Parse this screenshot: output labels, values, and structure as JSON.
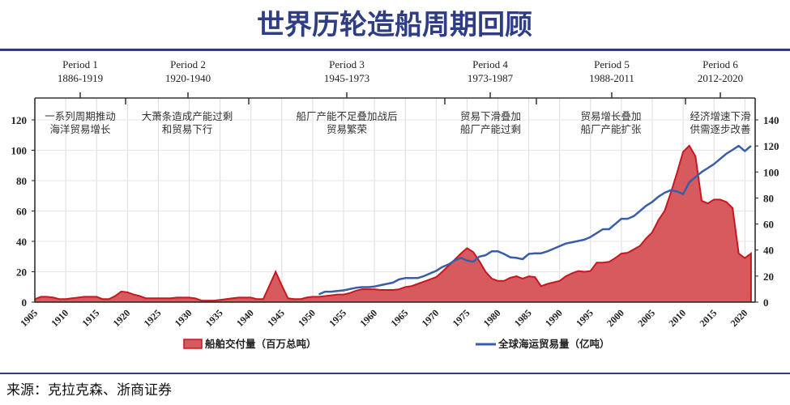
{
  "title": "世界历轮造船周期回顾",
  "source": "来源：克拉克森、浙商证券",
  "colors": {
    "title": "#2e3d84",
    "deliveries": "#c8171e",
    "deliveries_fill": "#d65a5e",
    "trade": "#3a5da8",
    "rule": "#2f3e7a"
  },
  "periods": [
    {
      "name": "Period 1",
      "years": "1886-1919",
      "note": [
        "一系列周期推动",
        "海洋贸易增长"
      ]
    },
    {
      "name": "Period 2",
      "years": "1920-1940",
      "note": [
        "大萧条造成产能过剩",
        "和贸易下行"
      ]
    },
    {
      "name": "Period 3",
      "years": "1945-1973",
      "note": [
        "船厂产能不足叠加战后",
        "贸易繁荣"
      ]
    },
    {
      "name": "Period 4",
      "years": "1973-1987",
      "note": [
        "贸易下滑叠加",
        "船厂产能过剩"
      ]
    },
    {
      "name": "Period 5",
      "years": "1988-2011",
      "note": [
        "贸易增长叠加",
        "船厂产能扩张"
      ]
    },
    {
      "name": "Period 6",
      "years": "2012-2020",
      "note": [
        "经济增速下滑",
        "供需逐步改善"
      ]
    }
  ],
  "chart_data": {
    "type": "area+line",
    "xlabel": "",
    "ylabel": "",
    "y2label": "",
    "xlim": [
      1905,
      2021
    ],
    "x_ticks": [
      "1905",
      "1910",
      "1915",
      "1920",
      "1925",
      "1930",
      "1935",
      "1940",
      "1945",
      "1950",
      "1955",
      "1960",
      "1965",
      "1970",
      "1975",
      "1980",
      "1985",
      "1990",
      "1995",
      "2000",
      "2005",
      "2010",
      "2015",
      "2020"
    ],
    "ylim": [
      0,
      120
    ],
    "y_ticks": [
      "0",
      "20",
      "40",
      "60",
      "80",
      "100",
      "120"
    ],
    "y2lim": [
      0,
      140
    ],
    "y2_ticks": [
      "0",
      "20",
      "40",
      "60",
      "80",
      "100",
      "120",
      "140"
    ],
    "grid": true,
    "legend": "bottom",
    "series": [
      {
        "name": "船舶交付量（百万总吨）",
        "type": "area",
        "axis": "left",
        "start_year": 1905,
        "values": [
          2,
          3.5,
          3.5,
          3,
          2,
          2,
          2.5,
          3,
          3.5,
          3.5,
          3.5,
          2,
          2,
          4,
          7,
          6.5,
          5,
          4,
          2.5,
          2.5,
          2.5,
          2.5,
          2.5,
          3,
          3,
          3,
          2.5,
          1,
          1,
          1,
          1.5,
          2,
          2.5,
          3,
          3,
          3,
          2,
          2,
          11,
          20,
          11,
          2.5,
          2,
          2,
          3,
          3.5,
          3.5,
          4,
          4.5,
          5,
          5,
          6,
          7.5,
          8.5,
          8.5,
          8.5,
          8,
          8,
          8,
          8.5,
          10,
          10.5,
          12,
          13.5,
          15,
          16.5,
          20,
          24,
          28,
          32,
          35.5,
          33,
          27,
          20,
          15.5,
          14,
          14,
          16,
          17,
          15.5,
          17,
          16.5,
          10.5,
          12,
          13,
          14,
          17,
          19,
          20.5,
          20,
          20.5,
          26,
          26,
          26.5,
          29,
          32,
          32.5,
          34.7,
          37,
          42,
          46,
          54,
          60,
          72,
          85,
          99,
          103,
          96,
          66.7,
          65,
          67.5,
          67.5,
          66,
          62,
          32,
          29,
          32
        ]
      },
      {
        "name": "全球海运贸易量（亿吨）",
        "type": "line",
        "axis": "right",
        "start_year": 1951,
        "values": [
          6,
          8,
          8,
          8.5,
          9,
          10,
          11,
          11.5,
          11.5,
          12,
          13,
          14,
          15,
          17.5,
          18.5,
          18.5,
          18.5,
          20,
          22,
          24,
          27,
          29,
          32,
          34,
          32,
          31,
          35,
          36,
          39,
          39,
          37,
          34.5,
          34,
          33,
          37,
          37.5,
          37.5,
          39,
          41,
          43,
          45,
          46,
          47,
          48,
          50,
          53,
          56,
          56,
          60,
          64,
          64,
          66,
          70,
          74,
          77,
          81,
          84,
          86,
          85,
          83,
          92,
          96,
          100,
          103,
          106,
          110,
          114,
          117,
          120,
          116,
          120
        ]
      }
    ]
  }
}
